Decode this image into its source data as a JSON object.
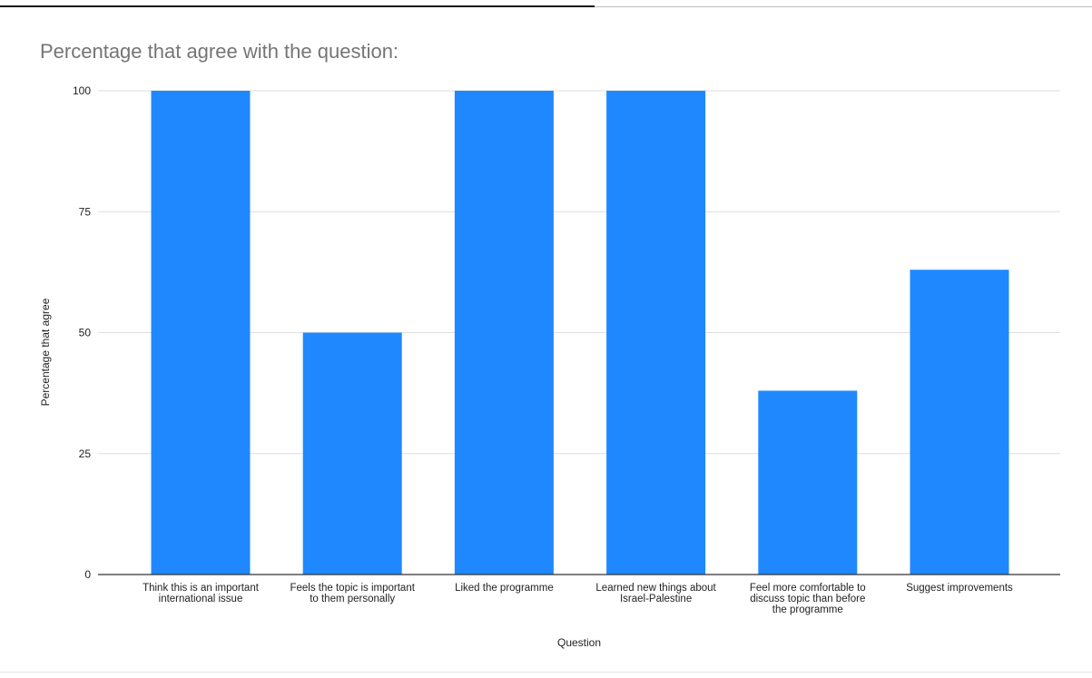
{
  "chart_data": {
    "type": "bar",
    "title": "Percentage that agree with the question:",
    "xlabel": "Question",
    "ylabel": "Percentage that agree",
    "ylim": [
      0,
      100
    ],
    "yticks": [
      0,
      25,
      50,
      75,
      100
    ],
    "grid": true,
    "bar_color": "#1f88ff",
    "categories": [
      "Think this is an important international issue",
      "Feels the topic is important to them personally",
      "Liked the programme",
      "Learned new things about Israel-Palestine",
      "Feel more comfortable to discuss topic than before the programme",
      "Suggest improvements"
    ],
    "category_label_lines": [
      [
        "Think this is an important",
        "international issue"
      ],
      [
        "Feels the topic is important",
        "to them personally"
      ],
      [
        "Liked the programme"
      ],
      [
        "Learned new things about",
        "Israel-Palestine"
      ],
      [
        "Feel more comfortable to",
        "discuss topic than before",
        "the programme"
      ],
      [
        "Suggest improvements"
      ]
    ],
    "values": [
      100,
      50,
      100,
      100,
      38,
      63
    ]
  }
}
